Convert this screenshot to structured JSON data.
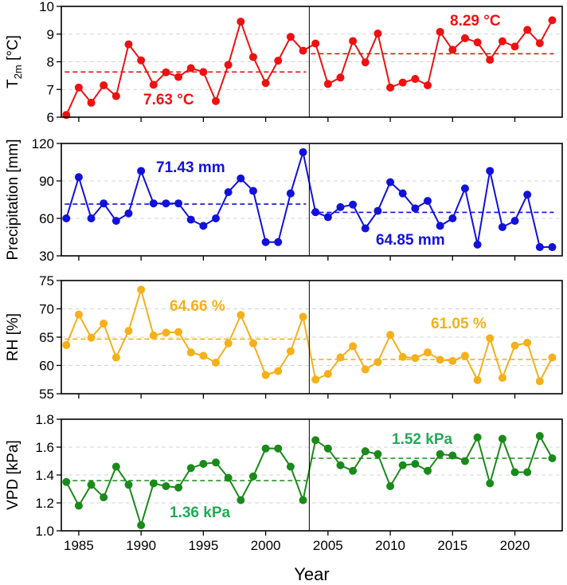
{
  "chart_data": [
    {
      "type": "line",
      "ylabel": "T",
      "ylabel_sub": "2m",
      "ylabel_unit": " [°C]",
      "ylim": [
        6,
        10
      ],
      "yticks": [
        "6",
        "7",
        "8",
        "9",
        "10"
      ],
      "color": "#ee1111",
      "x": [
        1984,
        1985,
        1986,
        1987,
        1988,
        1989,
        1990,
        1991,
        1992,
        1993,
        1994,
        1995,
        1996,
        1997,
        1998,
        1999,
        2000,
        2001,
        2002,
        2003,
        2004,
        2005,
        2006,
        2007,
        2008,
        2009,
        2010,
        2011,
        2012,
        2013,
        2014,
        2015,
        2016,
        2017,
        2018,
        2019,
        2020,
        2021,
        2022,
        2023
      ],
      "values": [
        6.08,
        7.07,
        6.52,
        7.15,
        6.76,
        8.63,
        8.05,
        7.17,
        7.62,
        7.45,
        7.77,
        7.63,
        6.58,
        7.89,
        9.45,
        8.17,
        7.23,
        8.04,
        8.9,
        8.4,
        8.66,
        7.2,
        7.43,
        8.75,
        7.98,
        9.02,
        7.07,
        7.25,
        7.38,
        7.15,
        9.08,
        8.43,
        8.85,
        8.7,
        8.07,
        8.74,
        8.55,
        9.15,
        8.67,
        9.5
      ],
      "means": [
        {
          "from": 1984,
          "to": 2003,
          "value": 7.63,
          "label": "7.63 °C"
        },
        {
          "from": 2004,
          "to": 2023,
          "value": 8.29,
          "label": "8.29 °C"
        }
      ]
    },
    {
      "type": "line",
      "ylabel": "Precipitation [mm]",
      "ylim": [
        30,
        120
      ],
      "yticks": [
        "30",
        "60",
        "90",
        "120"
      ],
      "color": "#1111dd",
      "x": [
        1984,
        1985,
        1986,
        1987,
        1988,
        1989,
        1990,
        1991,
        1992,
        1993,
        1994,
        1995,
        1996,
        1997,
        1998,
        1999,
        2000,
        2001,
        2002,
        2003,
        2004,
        2005,
        2006,
        2007,
        2008,
        2009,
        2010,
        2011,
        2012,
        2013,
        2014,
        2015,
        2016,
        2017,
        2018,
        2019,
        2020,
        2021,
        2022,
        2023
      ],
      "values": [
        60,
        93,
        60,
        72,
        58,
        64,
        98,
        72,
        72,
        72,
        59,
        54,
        60,
        81,
        92,
        82,
        41,
        41,
        80,
        113,
        65,
        61,
        69,
        71,
        52,
        66,
        89,
        80,
        68,
        74,
        54,
        60,
        84,
        39,
        98,
        53,
        58,
        79,
        37,
        37
      ],
      "means": [
        {
          "from": 1984,
          "to": 2003,
          "value": 71.43,
          "label": "71.43 mm"
        },
        {
          "from": 2004,
          "to": 2023,
          "value": 64.85,
          "label": "64.85 mm"
        }
      ]
    },
    {
      "type": "line",
      "ylabel": "RH [%]",
      "ylim": [
        55,
        75
      ],
      "yticks": [
        "55",
        "60",
        "65",
        "70",
        "75"
      ],
      "color": "#f5b01a",
      "x": [
        1984,
        1985,
        1986,
        1987,
        1988,
        1989,
        1990,
        1991,
        1992,
        1993,
        1994,
        1995,
        1996,
        1997,
        1998,
        1999,
        2000,
        2001,
        2002,
        2003,
        2004,
        2005,
        2006,
        2007,
        2008,
        2009,
        2010,
        2011,
        2012,
        2013,
        2014,
        2015,
        2016,
        2017,
        2018,
        2019,
        2020,
        2021,
        2022,
        2023
      ],
      "values": [
        63.6,
        69.0,
        64.9,
        67.4,
        61.4,
        66.1,
        73.4,
        65.3,
        65.8,
        65.9,
        62.3,
        61.7,
        60.5,
        63.9,
        68.9,
        63.9,
        58.3,
        59.0,
        62.5,
        68.6,
        57.5,
        58.5,
        61.4,
        63.4,
        59.3,
        60.6,
        65.4,
        61.5,
        61.3,
        62.3,
        61.0,
        60.8,
        61.7,
        57.4,
        64.8,
        57.8,
        63.5,
        64.0,
        57.2,
        61.4
      ],
      "means": [
        {
          "from": 1984,
          "to": 2003,
          "value": 64.66,
          "label": "64.66 %"
        },
        {
          "from": 2004,
          "to": 2023,
          "value": 61.05,
          "label": "61.05 %"
        }
      ]
    },
    {
      "type": "line",
      "ylabel": "VPD [kPa]",
      "xlabel": "Year",
      "ylim": [
        1.0,
        1.8
      ],
      "yticks": [
        "1.0",
        "1.2",
        "1.4",
        "1.6",
        "1.8"
      ],
      "xticks": [
        "1985",
        "1990",
        "1995",
        "2000",
        "2005",
        "2010",
        "2015",
        "2020"
      ],
      "color": "#1a8a1a",
      "x": [
        1984,
        1985,
        1986,
        1987,
        1988,
        1989,
        1990,
        1991,
        1992,
        1993,
        1994,
        1995,
        1996,
        1997,
        1998,
        1999,
        2000,
        2001,
        2002,
        2003,
        2004,
        2005,
        2006,
        2007,
        2008,
        2009,
        2010,
        2011,
        2012,
        2013,
        2014,
        2015,
        2016,
        2017,
        2018,
        2019,
        2020,
        2021,
        2022,
        2023
      ],
      "values": [
        1.35,
        1.18,
        1.33,
        1.24,
        1.46,
        1.33,
        1.04,
        1.34,
        1.32,
        1.31,
        1.45,
        1.48,
        1.49,
        1.38,
        1.22,
        1.39,
        1.59,
        1.59,
        1.46,
        1.22,
        1.65,
        1.59,
        1.47,
        1.43,
        1.57,
        1.55,
        1.32,
        1.47,
        1.48,
        1.43,
        1.55,
        1.54,
        1.5,
        1.67,
        1.34,
        1.66,
        1.42,
        1.42,
        1.68,
        1.52
      ],
      "means": [
        {
          "from": 1984,
          "to": 2003,
          "value": 1.36,
          "label": "1.36 kPa"
        },
        {
          "from": 2004,
          "to": 2023,
          "value": 1.52,
          "label": "1.52 kPa"
        }
      ],
      "mean_label_color": "#22aa55"
    }
  ]
}
